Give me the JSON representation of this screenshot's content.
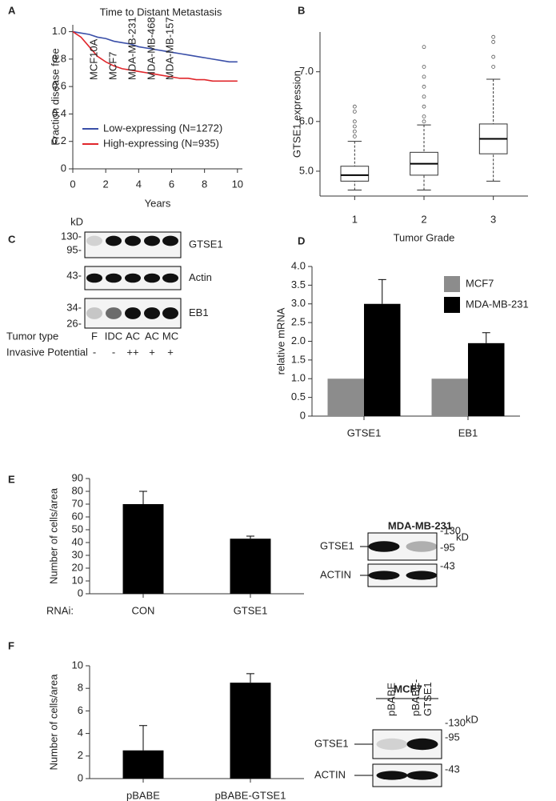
{
  "panel_labels": [
    "A",
    "B",
    "C",
    "D",
    "E",
    "F"
  ],
  "chart_data": [
    {
      "type": "line",
      "title": "Time to Distant Metastasis",
      "xlabel": "Years",
      "ylabel": "Fraction disease free",
      "x": [
        0,
        0.5,
        1,
        1.5,
        2,
        2.5,
        3,
        3.5,
        4,
        4.5,
        5,
        5.5,
        6,
        6.5,
        7,
        7.5,
        8,
        8.5,
        9,
        9.5,
        10
      ],
      "series": [
        {
          "name": "Low-expressing (N=1272)",
          "color": "#3a4fa8",
          "values": [
            1.0,
            0.99,
            0.98,
            0.96,
            0.95,
            0.93,
            0.92,
            0.91,
            0.89,
            0.88,
            0.87,
            0.86,
            0.85,
            0.84,
            0.83,
            0.82,
            0.81,
            0.8,
            0.79,
            0.78,
            0.78
          ]
        },
        {
          "name": "High-expressing (N=935)",
          "color": "#e0262b",
          "values": [
            1.0,
            0.96,
            0.89,
            0.82,
            0.78,
            0.75,
            0.73,
            0.72,
            0.71,
            0.7,
            0.69,
            0.68,
            0.67,
            0.66,
            0.66,
            0.65,
            0.65,
            0.64,
            0.64,
            0.64,
            0.64
          ]
        }
      ],
      "xlim": [
        0,
        10.3
      ],
      "xticks": [
        0,
        2,
        4,
        6,
        8,
        10
      ],
      "ylim": [
        0,
        1.05
      ],
      "yticks": [
        0,
        0.2,
        0.4,
        0.6,
        0.8,
        {
          "value": 1,
          "label": "1.0"
        }
      ],
      "legend": "lower left"
    },
    {
      "type": "box",
      "xlabel": "Tumor Grade",
      "ylabel": "GTSE1 expression",
      "categories": [
        "1",
        "2",
        "3"
      ],
      "boxes": [
        {
          "min": 4.62,
          "q1": 4.8,
          "median": 4.92,
          "q3": 5.1,
          "max": 5.6,
          "outliers": [
            5.7,
            5.8,
            5.9,
            6.0,
            6.2,
            6.3
          ]
        },
        {
          "min": 4.62,
          "q1": 4.92,
          "median": 5.15,
          "q3": 5.38,
          "max": 5.93,
          "outliers": [
            6.0,
            6.1,
            6.3,
            6.5,
            6.7,
            6.9,
            7.1,
            7.5
          ]
        },
        {
          "min": 4.8,
          "q1": 5.35,
          "median": 5.65,
          "q3": 5.95,
          "max": 6.85,
          "outliers": [
            7.1,
            7.3,
            7.6,
            7.7
          ]
        }
      ],
      "ylim": [
        4.5,
        7.8
      ],
      "yticks": [
        {
          "value": 5,
          "label": "5.0"
        },
        {
          "value": 6,
          "label": "6.0"
        },
        {
          "value": 7,
          "label": "7.0"
        }
      ]
    },
    {
      "type": "bar",
      "ylabel": "relative mRNA",
      "categories": [
        "GTSE1",
        "EB1"
      ],
      "series": [
        {
          "name": "MCF7",
          "color": "#8c8c8c",
          "values": [
            1,
            1
          ]
        },
        {
          "name": "MDA-MB-231",
          "color": "#000000",
          "values": [
            3.0,
            1.95
          ],
          "errors": [
            0.65,
            0.28
          ]
        }
      ],
      "ylim": [
        0,
        4
      ],
      "yticks": [
        0,
        0.5,
        {
          "value": 1,
          "label": "1.0"
        },
        1.5,
        {
          "value": 2,
          "label": "2.0"
        },
        2.5,
        {
          "value": 3,
          "label": "3.0"
        },
        3.5,
        {
          "value": 4,
          "label": "4.0"
        }
      ],
      "legend": "upper right"
    },
    {
      "type": "bar",
      "ylabel": "Number of cells/area",
      "xlabel": "RNAi:",
      "categories": [
        "CON",
        "GTSE1"
      ],
      "values": [
        70,
        43
      ],
      "errors": [
        10,
        2
      ],
      "color": "#000000",
      "ylim": [
        0,
        90
      ],
      "yticks": [
        0,
        10,
        20,
        30,
        40,
        50,
        60,
        70,
        80,
        90
      ]
    },
    {
      "type": "bar",
      "ylabel": "Number of cells/area",
      "categories": [
        "pBABE",
        "pBABE-GTSE1"
      ],
      "values": [
        2.5,
        8.5
      ],
      "errors": [
        2.2,
        0.8
      ],
      "color": "#000000",
      "ylim": [
        0,
        10
      ],
      "yticks": [
        0,
        2,
        4,
        6,
        8,
        10
      ]
    }
  ],
  "blots": [
    {
      "kd": "kD",
      "lanes": [
        [
          "MCF10A"
        ],
        [
          "MCF7"
        ],
        [
          "MDA-MB-231"
        ],
        [
          "MDA-MB-468"
        ],
        [
          "MDA-MB-157"
        ]
      ],
      "rows": [
        {
          "label": "GTSE1",
          "markers": [
            "130-",
            "95-"
          ]
        },
        {
          "label": "Actin",
          "markers": [
            "43-"
          ]
        },
        {
          "label": "EB1",
          "markers": [
            "34-",
            "26-"
          ]
        }
      ],
      "annotations": [
        {
          "label": "Tumor type",
          "values": [
            "F",
            "IDC",
            "AC",
            "AC",
            "MC"
          ]
        },
        {
          "label": "Invasive Potential",
          "values": [
            "-",
            "-",
            "++",
            "+",
            "+"
          ]
        }
      ]
    },
    {
      "title": "MDA-MB-231",
      "kd": "kD",
      "lanes": [],
      "rows": [
        {
          "label": "GTSE1",
          "markers": [
            "-130",
            "-95"
          ]
        },
        {
          "label": "ACTIN",
          "markers": [
            "-43"
          ]
        }
      ]
    },
    {
      "title": "MCF7",
      "kd": "kD",
      "lanes": [
        [
          "pBABE"
        ],
        [
          "pBABE-",
          "GTSE1"
        ]
      ],
      "rows": [
        {
          "label": "GTSE1",
          "markers": [
            "-130",
            "-95"
          ]
        },
        {
          "label": "ACTIN",
          "markers": [
            "-43"
          ]
        }
      ]
    }
  ]
}
